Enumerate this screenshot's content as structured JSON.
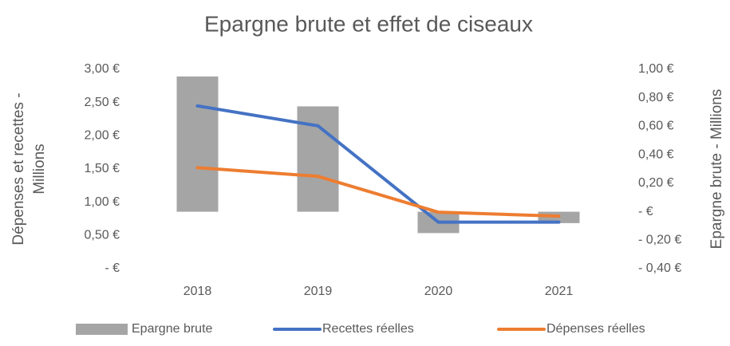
{
  "chart_data": {
    "type": "bar-line",
    "title": "Epargne brute et effet de ciseaux",
    "ylabel": [
      "Dépenses et recettes -",
      "Millions"
    ],
    "y2label": "Epargne brute - Millions",
    "categories": [
      "2018",
      "2019",
      "2020",
      "2021"
    ],
    "ylim": [
      0,
      3
    ],
    "yticks": [
      {
        "value": 0,
        "label": "-   €"
      },
      {
        "value": 0.5,
        "label": "0,50 €"
      },
      {
        "value": 1,
        "label": "1,00 €"
      },
      {
        "value": 1.5,
        "label": "1,50 €"
      },
      {
        "value": 2,
        "label": "2,00 €"
      },
      {
        "value": 2.5,
        "label": "2,50 €"
      },
      {
        "value": 3,
        "label": "3,00 €"
      }
    ],
    "y2lim": [
      -0.4,
      1
    ],
    "y2ticks": [
      {
        "value": -0.4,
        "label": "- 0,40 €"
      },
      {
        "value": -0.2,
        "label": "- 0,20 €"
      },
      {
        "value": 0,
        "label": "-   €"
      },
      {
        "value": 0.2,
        "label": "0,20 €"
      },
      {
        "value": 0.4,
        "label": "0,40 €"
      },
      {
        "value": 0.6,
        "label": "0,60 €"
      },
      {
        "value": 0.8,
        "label": "0,80 €"
      },
      {
        "value": 1,
        "label": "1,00 €"
      }
    ],
    "legend": "bottom",
    "series": [
      {
        "name": "Epargne brute",
        "type": "bar",
        "axis": "y2",
        "color": "#a5a5a5",
        "values": [
          0.95,
          0.74,
          -0.15,
          -0.08
        ]
      },
      {
        "name": "Recettes réelles",
        "type": "line",
        "color": "#4472c4",
        "values": [
          2.45,
          2.15,
          0.7,
          0.7
        ]
      },
      {
        "name": "Dépenses réelles",
        "type": "line",
        "color": "#ed7d31",
        "values": [
          1.52,
          1.39,
          0.85,
          0.79
        ]
      }
    ]
  }
}
